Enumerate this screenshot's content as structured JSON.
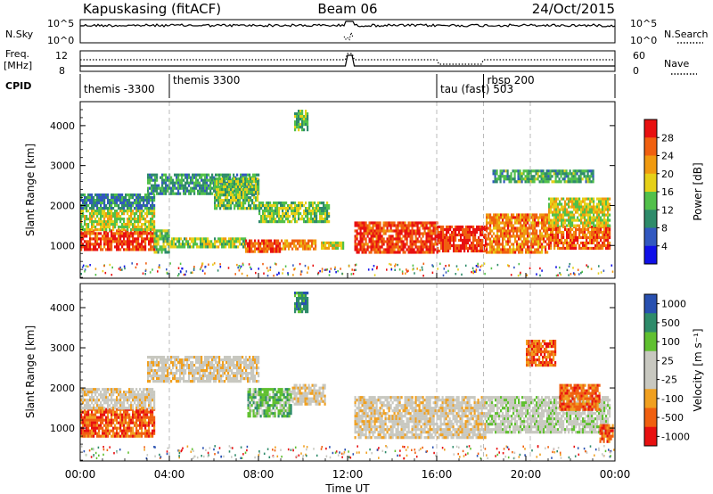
{
  "header": {
    "title_left": "Kapuskasing (fitACF)",
    "title_center": "Beam 06",
    "title_right": "24/Oct/2015"
  },
  "noise_panel": {
    "left_label": "N.Sky",
    "right_label": "N.Search",
    "ytick_top": "10^5",
    "ytick_bottom": "10^0"
  },
  "freq_panel": {
    "left_label": "Freq.",
    "left_unit": "[MHz]",
    "right_label": "Nave",
    "left_ticks": [
      "12",
      "8"
    ],
    "right_ticks": [
      "60",
      "0"
    ]
  },
  "cpid": {
    "label": "CPID",
    "segments": [
      {
        "label": "themis -3300",
        "start": 0.0
      },
      {
        "label": "themis 3300",
        "start": 4.0
      },
      {
        "label": "tau (fast) 503",
        "start": 16.0
      },
      {
        "label": "rbsp 200",
        "start": 18.1
      }
    ]
  },
  "colors": {
    "power": [
      "#1010e8",
      "#3258c0",
      "#2e8b6a",
      "#52c04a",
      "#e6d018",
      "#f09a10",
      "#f06010",
      "#e81010"
    ],
    "velocity": [
      "#e81010",
      "#f06010",
      "#f0a020",
      "#c8c8c0",
      "#c8c8c0",
      "#60c030",
      "#2e8b6a",
      "#2850b0"
    ]
  },
  "chart_data": [
    {
      "type": "heatmap",
      "name": "power-panel",
      "ylabel": "Slant Range [km]",
      "ylim": [
        180,
        4600
      ],
      "yticks": [
        1000,
        2000,
        3000,
        4000
      ],
      "xlim": [
        0,
        24
      ],
      "colorbar": {
        "label": "Power [dB]",
        "ticks": [
          "4",
          "8",
          "12",
          "16",
          "20",
          "24",
          "28"
        ],
        "range": [
          0,
          32
        ]
      },
      "bands": [
        {
          "x": [
            0.0,
            3.3
          ],
          "y": [
            900,
            1400
          ],
          "level": 28
        },
        {
          "x": [
            0.0,
            3.3
          ],
          "y": [
            1400,
            1900
          ],
          "level": 17
        },
        {
          "x": [
            3.3,
            4.0
          ],
          "y": [
            800,
            1400
          ],
          "level": 14
        },
        {
          "x": [
            4.0,
            7.4
          ],
          "y": [
            950,
            1200
          ],
          "level": 16
        },
        {
          "x": [
            7.4,
            9.0
          ],
          "y": [
            850,
            1150
          ],
          "level": 27
        },
        {
          "x": [
            9.0,
            10.6
          ],
          "y": [
            900,
            1150
          ],
          "level": 23
        },
        {
          "x": [
            10.8,
            11.8
          ],
          "y": [
            900,
            1100
          ],
          "level": 18
        },
        {
          "x": [
            12.3,
            16.0
          ],
          "y": [
            850,
            1600
          ],
          "level": 28
        },
        {
          "x": [
            16.0,
            18.2
          ],
          "y": [
            850,
            1500
          ],
          "level": 29
        },
        {
          "x": [
            18.2,
            21.0
          ],
          "y": [
            850,
            1800
          ],
          "level": 24
        },
        {
          "x": [
            21.0,
            23.8
          ],
          "y": [
            900,
            1500
          ],
          "level": 26
        },
        {
          "x": [
            21.0,
            23.8
          ],
          "y": [
            1500,
            2200
          ],
          "level": 18
        },
        {
          "x": [
            3.0,
            8.0
          ],
          "y": [
            2300,
            2800
          ],
          "level": 11
        },
        {
          "x": [
            6.0,
            8.0
          ],
          "y": [
            1900,
            2700
          ],
          "level": 14
        },
        {
          "x": [
            8.0,
            11.2
          ],
          "y": [
            1600,
            2100
          ],
          "level": 15
        },
        {
          "x": [
            9.6,
            10.2
          ],
          "y": [
            3900,
            4400
          ],
          "level": 13
        },
        {
          "x": [
            0.0,
            3.3
          ],
          "y": [
            1900,
            2300
          ],
          "level": 9
        },
        {
          "x": [
            18.5,
            23.0
          ],
          "y": [
            2600,
            2900
          ],
          "level": 12
        }
      ]
    },
    {
      "type": "heatmap",
      "name": "velocity-panel",
      "ylabel": "Slant Range [km]",
      "xlabel": "Time UT",
      "ylim": [
        180,
        4600
      ],
      "yticks": [
        1000,
        2000,
        3000,
        4000
      ],
      "xlim": [
        0,
        24
      ],
      "xticks": [
        "00:00",
        "04:00",
        "08:00",
        "12:00",
        "16:00",
        "20:00",
        "00:00"
      ],
      "colorbar": {
        "label": "Velocity [m s⁻¹]",
        "ticks": [
          "1000",
          "500",
          "100",
          "25",
          "-25",
          "-100",
          "-500",
          "-1000"
        ]
      },
      "bands": [
        {
          "x": [
            0.0,
            3.3
          ],
          "y": [
            800,
            1500
          ],
          "level": 1
        },
        {
          "x": [
            0.0,
            3.3
          ],
          "y": [
            1500,
            2000
          ],
          "level": 3
        },
        {
          "x": [
            3.0,
            8.0
          ],
          "y": [
            2200,
            2800
          ],
          "level": 3
        },
        {
          "x": [
            7.5,
            9.5
          ],
          "y": [
            1300,
            2000
          ],
          "level": 5
        },
        {
          "x": [
            9.5,
            11.0
          ],
          "y": [
            1600,
            2100
          ],
          "level": 3
        },
        {
          "x": [
            12.3,
            18.2
          ],
          "y": [
            800,
            1800
          ],
          "level": 3
        },
        {
          "x": [
            18.2,
            23.8
          ],
          "y": [
            900,
            1800
          ],
          "level": 4
        },
        {
          "x": [
            21.5,
            23.3
          ],
          "y": [
            1500,
            2100
          ],
          "level": 1
        },
        {
          "x": [
            20.0,
            21.3
          ],
          "y": [
            2600,
            3200
          ],
          "level": 1
        },
        {
          "x": [
            9.6,
            10.2
          ],
          "y": [
            3900,
            4400
          ],
          "level": 6
        },
        {
          "x": [
            23.3,
            23.9
          ],
          "y": [
            700,
            1100
          ],
          "level": 1
        }
      ]
    }
  ]
}
